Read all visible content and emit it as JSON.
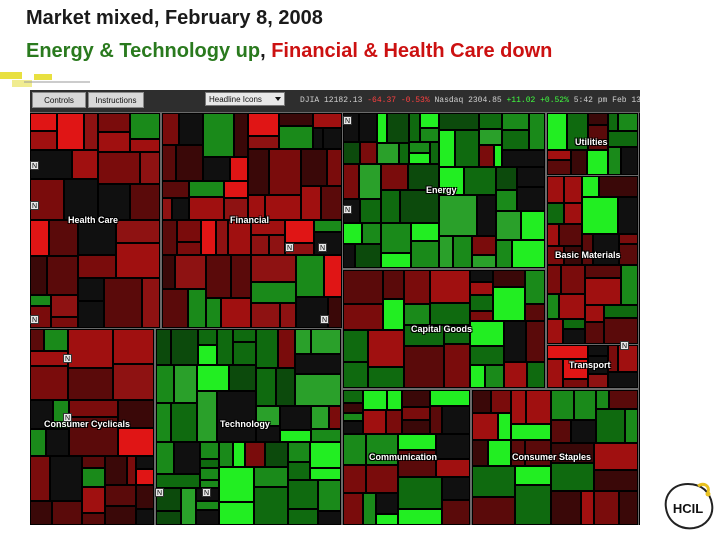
{
  "title": {
    "line1": "Market mixed, February 8, 2008",
    "up_text": "Energy & Technology up",
    "separator": ",",
    "down_text": "Financial & Health Care down"
  },
  "toolbar": {
    "controls_label": "Controls",
    "instructions_label": "Instructions",
    "select_value": "Headline Icons",
    "djia": "DJIA 12182.13",
    "djia_change": "-64.37 -0.53%",
    "nasdaq": "Nasdaq 2304.85",
    "nasdaq_change": "+11.02 +0.52%",
    "clock": "5:42 pm Feb 13"
  },
  "logo": {
    "text": "HCIL"
  },
  "colors": {
    "strong_up": "#22ee22",
    "up": "#1a8a1a",
    "down": "#a01010",
    "strong_down": "#e01515",
    "neutral": "#101010"
  },
  "chart_data": {
    "type": "treemap",
    "sectors": [
      {
        "name": "Health Care",
        "performance": "down"
      },
      {
        "name": "Financial",
        "performance": "down"
      },
      {
        "name": "Energy",
        "performance": "up"
      },
      {
        "name": "Utilities",
        "performance": "mixed"
      },
      {
        "name": "Basic Materials",
        "performance": "mixed"
      },
      {
        "name": "Capital Goods",
        "performance": "mixed"
      },
      {
        "name": "Transport",
        "performance": "down"
      },
      {
        "name": "Consumer Cyclicals",
        "performance": "down"
      },
      {
        "name": "Technology",
        "performance": "up"
      },
      {
        "name": "Communication",
        "performance": "mixed"
      },
      {
        "name": "Consumer Staples",
        "performance": "mixed"
      }
    ]
  }
}
